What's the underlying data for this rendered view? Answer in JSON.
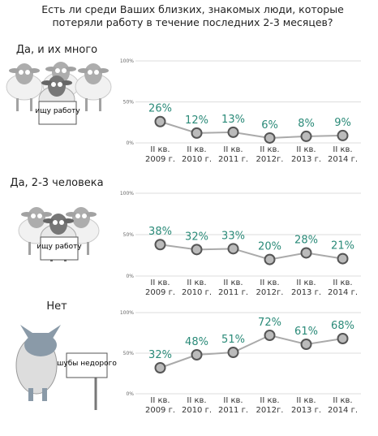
{
  "title": "Есть ли среди Ваших близких, знакомых люди, которые потеряли работу в течение последних 2-3 месяцев?",
  "chart_data": [
    {
      "type": "line",
      "title": "Да, и их много",
      "sign": "ищу работу",
      "color": "#555555",
      "label_color": "#2a8a78",
      "categories": [
        "II кв. 2009 г.",
        "II кв. 2010 г.",
        "II кв. 2011 г.",
        "II кв. 2012г.",
        "II кв. 2013 г.",
        "II кв. 2014 г."
      ],
      "values": [
        26,
        12,
        13,
        6,
        8,
        9
      ],
      "value_labels": [
        "26%",
        "12%",
        "13%",
        "6%",
        "8%",
        "9%"
      ],
      "ylim": [
        0,
        100
      ],
      "yticks": [
        {
          "value": 0,
          "label": "0%"
        },
        {
          "value": 50,
          "label": "50%"
        },
        {
          "value": 100,
          "label": "100%"
        }
      ]
    },
    {
      "type": "line",
      "title": "Да, 2-3 человека",
      "sign": "ищу работу",
      "color": "#555555",
      "label_color": "#2a8a78",
      "categories": [
        "II кв. 2009 г.",
        "II кв. 2010 г.",
        "II кв. 2011 г.",
        "II кв. 2012г.",
        "II кв. 2013 г.",
        "II кв. 2014 г."
      ],
      "values": [
        38,
        32,
        33,
        20,
        28,
        21
      ],
      "value_labels": [
        "38%",
        "32%",
        "33%",
        "20%",
        "28%",
        "21%"
      ],
      "ylim": [
        0,
        100
      ],
      "yticks": [
        {
          "value": 0,
          "label": "0%"
        },
        {
          "value": 50,
          "label": "50%"
        },
        {
          "value": 100,
          "label": "100%"
        }
      ]
    },
    {
      "type": "line",
      "title": "Нет",
      "sign": "шубы недорого",
      "color": "#555555",
      "label_color": "#2a8a78",
      "categories": [
        "II кв. 2009 г.",
        "II кв. 2010 г.",
        "II кв. 2011 г.",
        "II кв. 2012г.",
        "II кв. 2013 г.",
        "II кв. 2014 г."
      ],
      "values": [
        32,
        48,
        51,
        72,
        61,
        68
      ],
      "value_labels": [
        "32%",
        "48%",
        "51%",
        "72%",
        "61%",
        "68%"
      ],
      "ylim": [
        0,
        100
      ],
      "yticks": [
        {
          "value": 0,
          "label": "0%"
        },
        {
          "value": 50,
          "label": "50%"
        },
        {
          "value": 100,
          "label": "100%"
        }
      ]
    }
  ]
}
